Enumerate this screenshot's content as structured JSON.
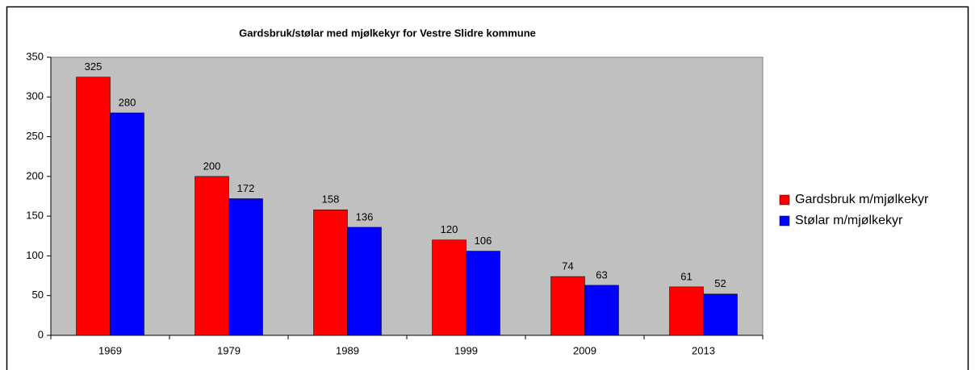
{
  "chart_data": {
    "type": "bar",
    "title": "Gardsbruk/stølar med mjølkekyr for Vestre Slidre kommune",
    "categories": [
      "1969",
      "1979",
      "1989",
      "1999",
      "2009",
      "2013"
    ],
    "series": [
      {
        "name": "Gardsbruk m/mjølkekyr",
        "color": "#ff0000",
        "values": [
          325,
          200,
          158,
          120,
          74,
          61
        ]
      },
      {
        "name": "Stølar m/mjølkekyr",
        "color": "#0000ff",
        "values": [
          280,
          172,
          136,
          106,
          63,
          52
        ]
      }
    ],
    "ylim": [
      0,
      350
    ],
    "yticks": [
      0,
      50,
      100,
      150,
      200,
      250,
      300,
      350
    ],
    "plot_background": "#c0c0c0",
    "legend": "right"
  }
}
